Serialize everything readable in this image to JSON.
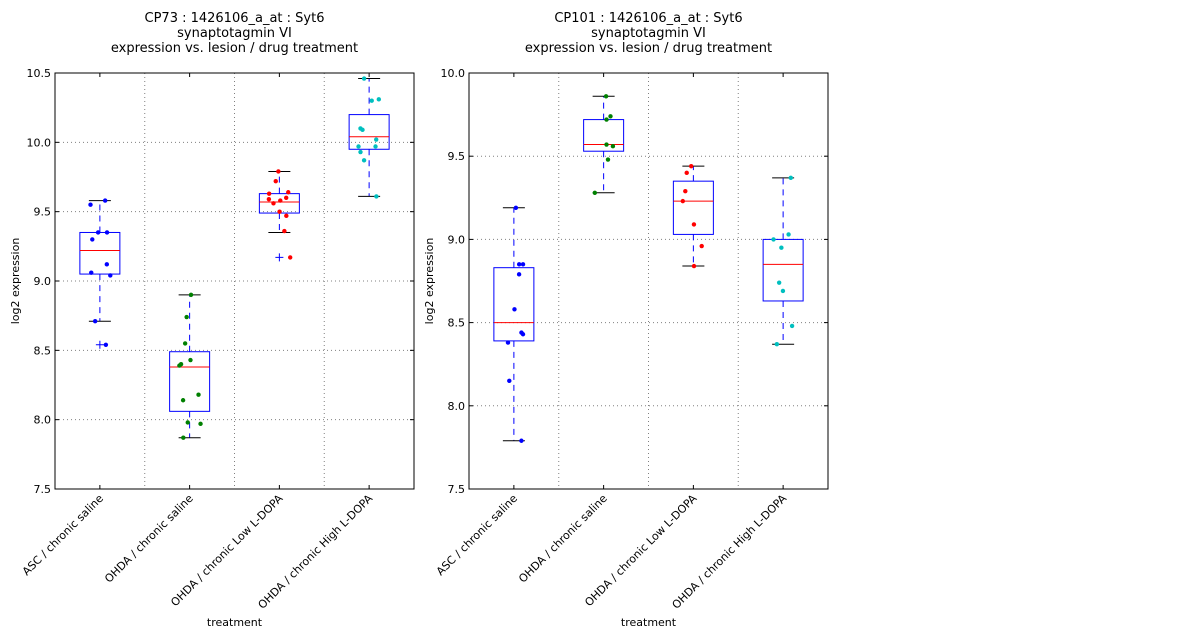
{
  "chart_data": [
    {
      "type": "box",
      "title_lines": [
        "CP73 : 1426106_a_at : Syt6",
        "synaptotagmin VI",
        "expression vs. lesion / drug treatment"
      ],
      "xlabel": "treatment",
      "ylabel": "log2 expression",
      "ylim": [
        7.5,
        10.5
      ],
      "yticks": [
        "7.5",
        "8.0",
        "8.5",
        "9.0",
        "9.5",
        "10.0",
        "10.5"
      ],
      "grid": true,
      "categories": [
        "ASC / chronic saline",
        "OHDA / chronic saline",
        "OHDA / chronic Low L-DOPA",
        "OHDA / chronic High L-DOPA"
      ],
      "point_colors": [
        "#0000ff",
        "#008000",
        "#ff0000",
        "#00bfbf"
      ],
      "boxes": [
        {
          "whislo": 8.71,
          "q1": 9.05,
          "med": 9.22,
          "q3": 9.35,
          "whishi": 9.58,
          "fliers": [
            8.54
          ],
          "points": [
            9.58,
            9.55,
            9.35,
            9.35,
            9.3,
            9.12,
            9.06,
            9.04,
            8.71,
            8.54
          ]
        },
        {
          "whislo": 7.87,
          "q1": 8.06,
          "med": 8.38,
          "q3": 8.49,
          "whishi": 8.9,
          "fliers": [],
          "points": [
            8.9,
            8.74,
            8.55,
            8.43,
            8.4,
            8.39,
            8.18,
            8.14,
            7.98,
            7.97,
            7.87
          ]
        },
        {
          "whislo": 9.35,
          "q1": 9.49,
          "med": 9.57,
          "q3": 9.63,
          "whishi": 9.79,
          "fliers": [
            9.17
          ],
          "points": [
            9.79,
            9.72,
            9.64,
            9.63,
            9.6,
            9.59,
            9.58,
            9.56,
            9.5,
            9.47,
            9.36,
            9.17
          ]
        },
        {
          "whislo": 9.61,
          "q1": 9.95,
          "med": 10.04,
          "q3": 10.2,
          "whishi": 10.46,
          "fliers": [],
          "points": [
            10.46,
            10.31,
            10.3,
            10.1,
            10.09,
            10.02,
            9.97,
            9.97,
            9.93,
            9.87,
            9.61
          ]
        }
      ]
    },
    {
      "type": "box",
      "title_lines": [
        "CP101 : 1426106_a_at : Syt6",
        "synaptotagmin VI",
        "expression vs. lesion / drug treatment"
      ],
      "xlabel": "treatment",
      "ylabel": "log2 expression",
      "ylim": [
        7.5,
        10.0
      ],
      "yticks": [
        "7.5",
        "8.0",
        "8.5",
        "9.0",
        "9.5",
        "10.0"
      ],
      "grid": true,
      "categories": [
        "ASC / chronic saline",
        "OHDA / chronic saline",
        "OHDA / chronic Low L-DOPA",
        "OHDA / chronic High L-DOPA"
      ],
      "point_colors": [
        "#0000ff",
        "#008000",
        "#ff0000",
        "#00bfbf"
      ],
      "boxes": [
        {
          "whislo": 7.79,
          "q1": 8.39,
          "med": 8.5,
          "q3": 8.83,
          "whishi": 9.19,
          "fliers": [],
          "points": [
            9.19,
            8.85,
            8.85,
            8.79,
            8.58,
            8.44,
            8.43,
            8.38,
            8.15,
            7.79
          ]
        },
        {
          "whislo": 9.28,
          "q1": 9.53,
          "med": 9.57,
          "q3": 9.72,
          "whishi": 9.86,
          "fliers": [],
          "points": [
            9.86,
            9.74,
            9.72,
            9.57,
            9.56,
            9.48,
            9.28
          ]
        },
        {
          "whislo": 8.84,
          "q1": 9.03,
          "med": 9.23,
          "q3": 9.35,
          "whishi": 9.44,
          "fliers": [],
          "points": [
            9.44,
            9.4,
            9.29,
            9.23,
            9.09,
            8.96,
            8.84
          ]
        },
        {
          "whislo": 8.37,
          "q1": 8.63,
          "med": 8.85,
          "q3": 9.0,
          "whishi": 9.37,
          "fliers": [],
          "points": [
            9.37,
            9.03,
            9.0,
            8.95,
            8.74,
            8.69,
            8.48,
            8.37
          ]
        }
      ]
    }
  ]
}
